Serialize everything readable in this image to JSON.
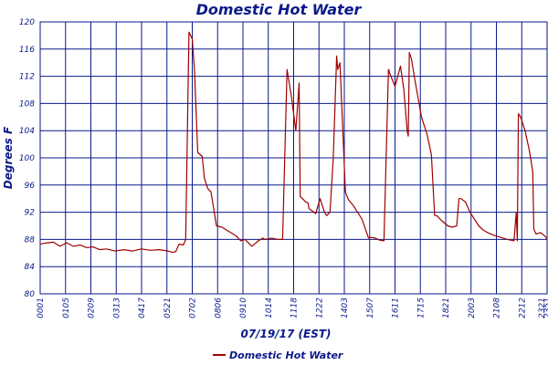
{
  "chart_data": {
    "type": "line",
    "title": "Domestic Hot Water",
    "xlabel": "07/19/17 (EST)",
    "ylabel": "Degrees F",
    "ylim": [
      80,
      120
    ],
    "y_ticks": [
      80,
      84,
      88,
      92,
      96,
      100,
      104,
      108,
      112,
      116,
      120
    ],
    "x_ticks": [
      "0001",
      "0105",
      "0209",
      "0313",
      "0417",
      "0521",
      "0702",
      "0806",
      "0910",
      "1014",
      "1118",
      "1222",
      "1403",
      "1507",
      "1611",
      "1715",
      "1821",
      "2003",
      "2108",
      "2212",
      "2351"
    ],
    "x_ticks_extra": "2321",
    "grid": true,
    "legend_position": "bottom-center",
    "colors": {
      "series": "#a00000",
      "grid": "#0a1a8a",
      "text": "#0a1a8a"
    },
    "series": [
      {
        "name": "Domestic Hot Water",
        "t": [
          0.0,
          0.3,
          0.6,
          0.9,
          1.2,
          1.5,
          1.8,
          2.1,
          2.4,
          2.7,
          3.0,
          3.4,
          3.8,
          4.2,
          4.6,
          5.0,
          5.4,
          5.8,
          6.0,
          6.15,
          6.3,
          6.5,
          6.6,
          6.75,
          6.9,
          7.0,
          7.15,
          7.35,
          7.45,
          7.6,
          7.75,
          8.0,
          8.25,
          8.5,
          8.75,
          8.9,
          9.1,
          9.3,
          9.6,
          9.9,
          10.1,
          10.2,
          10.35,
          10.5,
          10.8,
          11.0,
          11.2,
          11.4,
          11.6,
          11.75,
          11.8,
          11.9,
          12.05,
          12.15,
          12.2,
          12.3,
          12.5,
          12.7,
          12.9,
          13.0,
          13.15,
          13.3,
          13.45,
          13.5,
          13.6,
          13.85,
          13.9,
          14.0,
          14.2,
          14.4,
          14.6,
          14.9,
          15.0,
          15.2,
          15.4,
          15.6,
          15.8,
          15.82,
          15.85,
          16.1,
          16.35,
          16.5,
          16.6,
          16.65,
          16.7,
          16.75,
          16.85,
          17.0,
          17.3,
          17.55,
          17.75,
          17.9,
          18.0,
          18.2,
          18.5,
          18.7,
          18.9,
          19.0,
          19.1,
          19.3,
          19.5,
          19.7,
          19.9,
          20.1,
          20.3,
          20.6,
          20.9,
          21.2,
          21.5,
          21.6,
          21.65,
          21.7,
          21.8,
          22.0,
          22.2,
          22.35,
          22.4,
          22.5,
          22.7,
          22.9,
          23.0
        ],
        "y": [
          87.3,
          87.5,
          87.6,
          87.0,
          87.5,
          87.0,
          87.2,
          86.8,
          86.9,
          86.5,
          86.6,
          86.3,
          86.5,
          86.3,
          86.6,
          86.4,
          86.5,
          86.3,
          86.1,
          86.2,
          87.3,
          87.2,
          88.0,
          118.5,
          117.5,
          113.0,
          100.8,
          100.2,
          97.0,
          95.5,
          95.0,
          90.0,
          89.8,
          89.3,
          88.8,
          88.5,
          87.8,
          88.0,
          87.0,
          87.8,
          88.2,
          88.0,
          88.1,
          88.2,
          88.0,
          88.0,
          113.0,
          109.0,
          104.0,
          111.0,
          94.3,
          94.0,
          93.5,
          93.4,
          92.5,
          92.3,
          91.8,
          94.0,
          92.0,
          91.5,
          92.0,
          100.0,
          115.0,
          113.0,
          114.0,
          95.0,
          94.5,
          93.8,
          93.0,
          92.0,
          91.0,
          88.2,
          88.3,
          88.2,
          87.9,
          87.8,
          112.9,
          113.0,
          112.5,
          110.5,
          113.5,
          110.0,
          106.0,
          104.0,
          103.2,
          115.5,
          114.5,
          111.5,
          106.0,
          103.5,
          100.5,
          91.5,
          91.5,
          90.8,
          90.0,
          89.8,
          90.0,
          94.0,
          94.0,
          93.5,
          92.0,
          91.0,
          90.0,
          89.4,
          89.0,
          88.6,
          88.3,
          88.0,
          87.8,
          92.0,
          87.8,
          106.5,
          106.0,
          104.0,
          101.0,
          98.0,
          89.5,
          88.8,
          89.0,
          88.5,
          88.1
        ]
      }
    ]
  }
}
